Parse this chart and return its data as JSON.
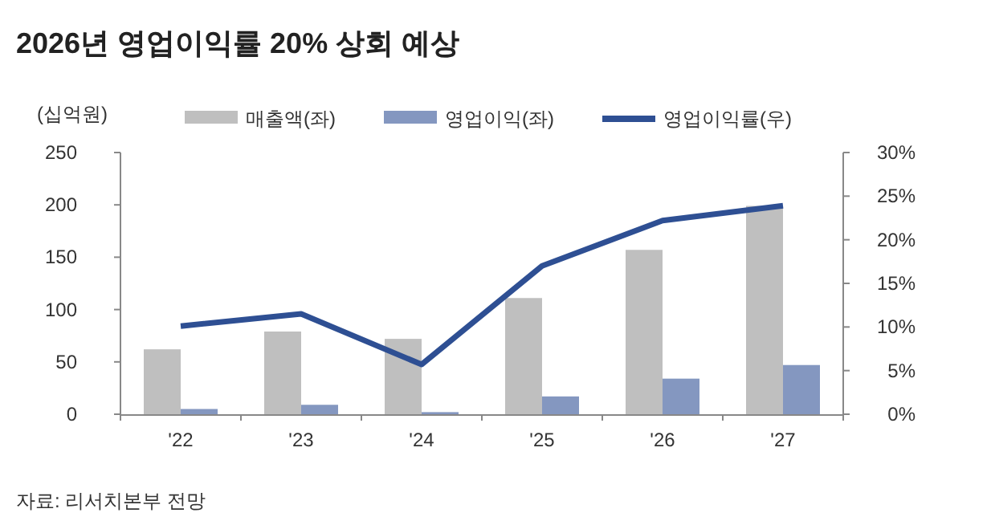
{
  "chart_data": {
    "type": "bar",
    "title": "2026년 영업이익률 20% 상회 예상",
    "ylabel": "(십억원)",
    "annotations": [
      "자료: 리서치본부 전망"
    ],
    "categories": [
      "'22",
      "'23",
      "'24",
      "'25",
      "'26",
      "'27"
    ],
    "series": [
      {
        "name": "매출액(좌)",
        "color": "#bfbfbf",
        "values": [
          62,
          79,
          72,
          111,
          157,
          199
        ]
      },
      {
        "name": "영업이익(좌)",
        "color": "#8497c0",
        "values": [
          5,
          9,
          2,
          17,
          34,
          47
        ]
      },
      {
        "name": "영업이익률(우)",
        "type": "line",
        "axis": "y2",
        "color": "#2e4f93",
        "values": [
          10.1,
          11.5,
          5.7,
          17.0,
          22.2,
          23.9
        ]
      }
    ],
    "ylim": [
      0,
      250
    ],
    "yticks": [
      0,
      50,
      100,
      150,
      200,
      250
    ],
    "y2lim": [
      0,
      30
    ],
    "y2ticks": [
      {
        "value": 0,
        "label": "0%"
      },
      {
        "value": 5,
        "label": "5%"
      },
      {
        "value": 10,
        "label": "10%"
      },
      {
        "value": 15,
        "label": "15%"
      },
      {
        "value": 20,
        "label": "20%"
      },
      {
        "value": 25,
        "label": "25%"
      },
      {
        "value": 30,
        "label": "30%"
      }
    ],
    "grid": false,
    "legend": "top",
    "marker": "none",
    "line_style": "solid"
  }
}
